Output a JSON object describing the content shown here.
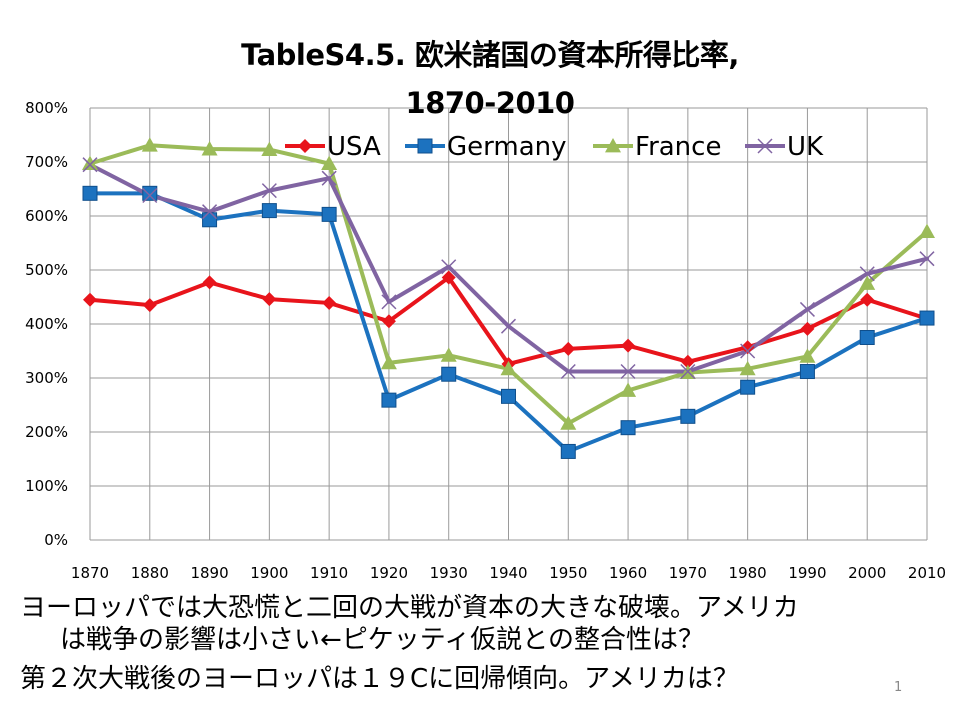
{
  "title_line1": "TableS4.5. 欧米諸国の資本所得比率,",
  "title_line2": "1870-2010",
  "captions": [
    "ヨーロッパでは大恐慌と二回の大戦が資本の大きな破壊。アメリカ",
    "は戦争の影響は小さい←ピケッティ仮説との整合性は？",
    "第２次大戦後のヨーロッパは１９Cに回帰傾向。アメリカは？"
  ],
  "page_number": "1",
  "chart_data": {
    "type": "line",
    "title": "TableS4.5. 欧米諸国の資本所得比率, 1870-2010",
    "xlabel": "",
    "ylabel": "",
    "categories": [
      "1870",
      "1880",
      "1890",
      "1900",
      "1910",
      "1920",
      "1930",
      "1940",
      "1950",
      "1960",
      "1970",
      "1980",
      "1990",
      "2000",
      "2010"
    ],
    "ylim": [
      0,
      800
    ],
    "yticks": [
      "0%",
      "100%",
      "200%",
      "300%",
      "400%",
      "500%",
      "600%",
      "700%",
      "800%"
    ],
    "grid": true,
    "legend_position": "top",
    "series": [
      {
        "name": "USA",
        "color": "#e8141b",
        "marker": "diamond",
        "values": [
          445,
          435,
          477,
          446,
          439,
          405,
          486,
          326,
          354,
          360,
          330,
          357,
          391,
          445,
          410
        ]
      },
      {
        "name": "Germany",
        "color": "#1c72bf",
        "marker": "square",
        "values": [
          642,
          642,
          593,
          610,
          603,
          259,
          307,
          266,
          164,
          208,
          229,
          283,
          312,
          375,
          411
        ]
      },
      {
        "name": "France",
        "color": "#9bbb59",
        "marker": "triangle",
        "values": [
          697,
          731,
          724,
          723,
          697,
          328,
          342,
          317,
          216,
          277,
          310,
          317,
          340,
          475,
          571
        ]
      },
      {
        "name": "UK",
        "color": "#8064a2",
        "marker": "x",
        "values": [
          695,
          638,
          608,
          647,
          670,
          441,
          506,
          396,
          312,
          312,
          312,
          350,
          427,
          493,
          521
        ]
      }
    ]
  }
}
